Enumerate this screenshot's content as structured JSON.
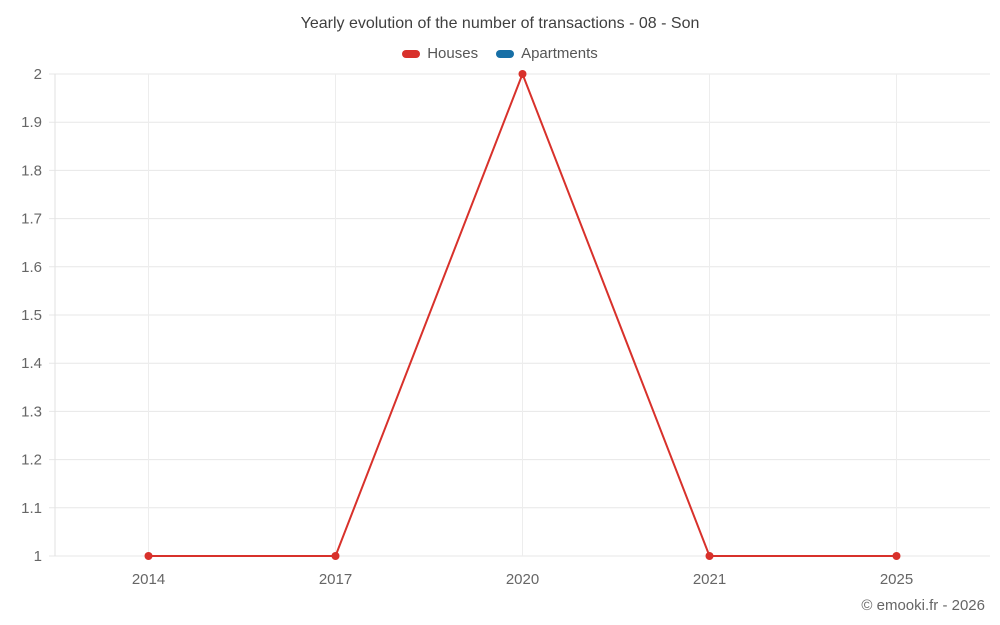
{
  "chart_data": {
    "type": "line",
    "title": "Yearly evolution of the number of transactions - 08 - Son",
    "categories": [
      "2014",
      "2017",
      "2020",
      "2021",
      "2025"
    ],
    "series": [
      {
        "name": "Houses",
        "color": "#d8312b",
        "values": [
          1,
          1,
          2,
          1,
          1
        ]
      },
      {
        "name": "Apartments",
        "color": "#176fa6",
        "values": []
      }
    ],
    "xlabel": "",
    "ylabel": "",
    "ylim": [
      1,
      2
    ],
    "y_ticks": [
      1,
      1.1,
      1.2,
      1.3,
      1.4,
      1.5,
      1.6,
      1.7,
      1.8,
      1.9,
      2
    ],
    "y_tick_labels": [
      "1",
      "1.1",
      "1.2",
      "1.3",
      "1.4",
      "1.5",
      "1.6",
      "1.7",
      "1.8",
      "1.9",
      "2"
    ],
    "grid": true,
    "legend_position": "top"
  },
  "footer": {
    "credit": "© emooki.fr - 2026"
  },
  "colors": {
    "background": "#ffffff",
    "grid_horizontal": "#e7e7e7",
    "grid_vertical": "#ededed",
    "axis_line": "#e2e2e2",
    "axis_text": "#666666",
    "title_text": "#3f3f3f",
    "legend_text": "#565656",
    "marker_radius": 4
  }
}
